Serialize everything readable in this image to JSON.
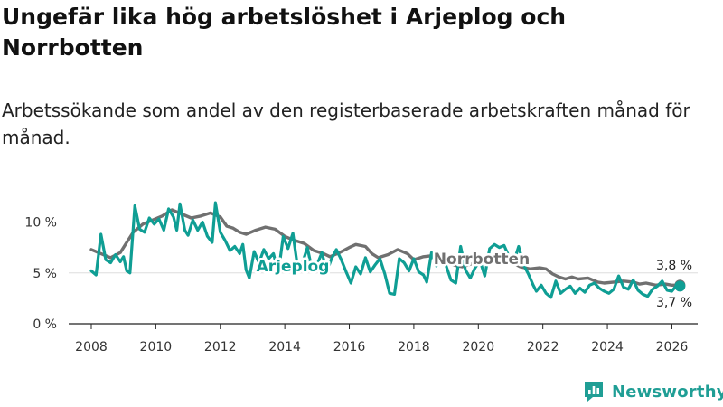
{
  "title": "Ungefär lika hög arbetslöshet i Arjeplog och Norrbotten",
  "subtitle": "Arbetssökande som andel av den registerbaserade arbetskraften månad för månad.",
  "brand": {
    "name": "Newsworthy",
    "icon": "newsworthy-logo-icon"
  },
  "colors": {
    "arjeplog": "#0f9e94",
    "norrbotten": "#707070",
    "grid": "#dedede",
    "axis": "#222222"
  },
  "chart_data": {
    "type": "line",
    "title": "Ungefär lika hög arbetslöshet i Arjeplog och Norrbotten",
    "xlabel": "",
    "ylabel": "",
    "xlim": [
      2007.3,
      2026.8
    ],
    "ylim": [
      0,
      12
    ],
    "x_ticks": [
      2008,
      2010,
      2012,
      2014,
      2016,
      2018,
      2020,
      2022,
      2024,
      2026
    ],
    "x_tick_labels": [
      "2008",
      "2010",
      "2012",
      "2014",
      "2016",
      "2018",
      "2020",
      "2022",
      "2024",
      "2026"
    ],
    "y_ticks": [
      0,
      5,
      10
    ],
    "y_tick_labels": [
      "0 %",
      "5 %",
      "10 %"
    ],
    "grid": true,
    "series": [
      {
        "name": "Norrbotten",
        "label": "Norrbotten",
        "end_label": "3,8 %",
        "end_value": 3.8,
        "points": [
          [
            2008.0,
            7.3
          ],
          [
            2008.3,
            6.9
          ],
          [
            2008.6,
            6.5
          ],
          [
            2008.9,
            7.0
          ],
          [
            2009.1,
            8.0
          ],
          [
            2009.3,
            9.0
          ],
          [
            2009.6,
            9.8
          ],
          [
            2009.9,
            10.2
          ],
          [
            2010.2,
            10.6
          ],
          [
            2010.5,
            11.2
          ],
          [
            2010.8,
            10.8
          ],
          [
            2011.1,
            10.4
          ],
          [
            2011.4,
            10.6
          ],
          [
            2011.7,
            10.9
          ],
          [
            2012.0,
            10.5
          ],
          [
            2012.2,
            9.6
          ],
          [
            2012.4,
            9.4
          ],
          [
            2012.6,
            9.0
          ],
          [
            2012.8,
            8.8
          ],
          [
            2013.1,
            9.2
          ],
          [
            2013.4,
            9.5
          ],
          [
            2013.7,
            9.3
          ],
          [
            2014.0,
            8.6
          ],
          [
            2014.3,
            8.2
          ],
          [
            2014.6,
            7.9
          ],
          [
            2014.9,
            7.2
          ],
          [
            2015.2,
            6.9
          ],
          [
            2015.4,
            6.6
          ],
          [
            2015.7,
            7.0
          ],
          [
            2016.0,
            7.5
          ],
          [
            2016.2,
            7.8
          ],
          [
            2016.5,
            7.6
          ],
          [
            2016.7,
            6.9
          ],
          [
            2016.9,
            6.5
          ],
          [
            2017.2,
            6.8
          ],
          [
            2017.5,
            7.3
          ],
          [
            2017.8,
            6.9
          ],
          [
            2018.0,
            6.3
          ],
          [
            2018.3,
            6.6
          ],
          [
            2018.6,
            6.7
          ],
          [
            2018.9,
            6.4
          ],
          [
            2019.2,
            5.8
          ],
          [
            2019.5,
            5.6
          ],
          [
            2019.8,
            5.9
          ],
          [
            2020.1,
            6.3
          ],
          [
            2020.4,
            6.7
          ],
          [
            2020.7,
            6.5
          ],
          [
            2021.0,
            6.1
          ],
          [
            2021.3,
            5.6
          ],
          [
            2021.6,
            5.4
          ],
          [
            2021.9,
            5.5
          ],
          [
            2022.1,
            5.4
          ],
          [
            2022.3,
            4.9
          ],
          [
            2022.5,
            4.6
          ],
          [
            2022.7,
            4.4
          ],
          [
            2022.9,
            4.6
          ],
          [
            2023.1,
            4.4
          ],
          [
            2023.4,
            4.5
          ],
          [
            2023.7,
            4.1
          ],
          [
            2023.9,
            4.0
          ],
          [
            2024.2,
            4.1
          ],
          [
            2024.5,
            4.2
          ],
          [
            2024.8,
            4.1
          ],
          [
            2025.0,
            3.9
          ],
          [
            2025.2,
            4.0
          ],
          [
            2025.5,
            3.8
          ],
          [
            2025.8,
            3.9
          ],
          [
            2026.0,
            3.8
          ],
          [
            2026.25,
            3.8
          ]
        ]
      },
      {
        "name": "Arjeplog",
        "label": "Arjeplog",
        "end_label": "3,7 %",
        "end_value": 3.7,
        "points": [
          [
            2008.0,
            5.2
          ],
          [
            2008.15,
            4.8
          ],
          [
            2008.3,
            8.8
          ],
          [
            2008.45,
            6.3
          ],
          [
            2008.6,
            6.0
          ],
          [
            2008.75,
            6.8
          ],
          [
            2008.9,
            6.1
          ],
          [
            2009.0,
            6.6
          ],
          [
            2009.1,
            5.2
          ],
          [
            2009.2,
            5.0
          ],
          [
            2009.35,
            11.6
          ],
          [
            2009.5,
            9.3
          ],
          [
            2009.65,
            9.0
          ],
          [
            2009.8,
            10.4
          ],
          [
            2009.95,
            9.8
          ],
          [
            2010.1,
            10.3
          ],
          [
            2010.25,
            9.2
          ],
          [
            2010.4,
            11.3
          ],
          [
            2010.55,
            10.5
          ],
          [
            2010.65,
            9.2
          ],
          [
            2010.75,
            11.8
          ],
          [
            2010.9,
            9.2
          ],
          [
            2011.0,
            8.7
          ],
          [
            2011.15,
            10.2
          ],
          [
            2011.3,
            9.2
          ],
          [
            2011.45,
            10.0
          ],
          [
            2011.6,
            8.6
          ],
          [
            2011.75,
            8.0
          ],
          [
            2011.85,
            11.9
          ],
          [
            2012.0,
            9.0
          ],
          [
            2012.15,
            8.2
          ],
          [
            2012.3,
            7.2
          ],
          [
            2012.45,
            7.6
          ],
          [
            2012.6,
            6.9
          ],
          [
            2012.7,
            7.8
          ],
          [
            2012.8,
            5.3
          ],
          [
            2012.9,
            4.5
          ],
          [
            2013.05,
            7.1
          ],
          [
            2013.2,
            6.0
          ],
          [
            2013.35,
            7.3
          ],
          [
            2013.5,
            6.4
          ],
          [
            2013.65,
            6.9
          ],
          [
            2013.8,
            5.0
          ],
          [
            2013.95,
            8.6
          ],
          [
            2014.1,
            7.4
          ],
          [
            2014.25,
            8.9
          ],
          [
            2014.4,
            5.5
          ],
          [
            2014.55,
            6.0
          ],
          [
            2014.7,
            7.5
          ],
          [
            2014.85,
            5.2
          ],
          [
            2015.0,
            5.8
          ],
          [
            2015.15,
            7.0
          ],
          [
            2015.3,
            5.1
          ],
          [
            2015.45,
            6.4
          ],
          [
            2015.6,
            7.3
          ],
          [
            2015.75,
            6.3
          ],
          [
            2015.9,
            5.1
          ],
          [
            2016.05,
            4.0
          ],
          [
            2016.2,
            5.6
          ],
          [
            2016.35,
            4.9
          ],
          [
            2016.5,
            6.5
          ],
          [
            2016.65,
            5.1
          ],
          [
            2016.8,
            5.8
          ],
          [
            2016.95,
            6.4
          ],
          [
            2017.1,
            4.9
          ],
          [
            2017.25,
            3.0
          ],
          [
            2017.4,
            2.9
          ],
          [
            2017.55,
            6.4
          ],
          [
            2017.7,
            6.0
          ],
          [
            2017.85,
            5.2
          ],
          [
            2018.0,
            6.4
          ],
          [
            2018.15,
            5.1
          ],
          [
            2018.3,
            4.8
          ],
          [
            2018.4,
            4.1
          ],
          [
            2018.55,
            7.0
          ],
          [
            2018.7,
            5.7
          ],
          [
            2018.85,
            6.5
          ],
          [
            2019.0,
            5.7
          ],
          [
            2019.15,
            4.3
          ],
          [
            2019.3,
            4.0
          ],
          [
            2019.45,
            7.6
          ],
          [
            2019.6,
            5.3
          ],
          [
            2019.75,
            4.5
          ],
          [
            2019.9,
            5.5
          ],
          [
            2020.05,
            6.2
          ],
          [
            2020.2,
            4.7
          ],
          [
            2020.35,
            7.4
          ],
          [
            2020.5,
            7.8
          ],
          [
            2020.65,
            7.5
          ],
          [
            2020.8,
            7.7
          ],
          [
            2020.95,
            6.6
          ],
          [
            2021.1,
            6.1
          ],
          [
            2021.25,
            7.6
          ],
          [
            2021.4,
            5.8
          ],
          [
            2021.55,
            4.9
          ],
          [
            2021.7,
            3.8
          ],
          [
            2021.8,
            3.2
          ],
          [
            2021.95,
            3.8
          ],
          [
            2022.1,
            3.0
          ],
          [
            2022.25,
            2.6
          ],
          [
            2022.4,
            4.2
          ],
          [
            2022.55,
            3.0
          ],
          [
            2022.7,
            3.4
          ],
          [
            2022.85,
            3.7
          ],
          [
            2023.0,
            3.0
          ],
          [
            2023.15,
            3.5
          ],
          [
            2023.3,
            3.1
          ],
          [
            2023.45,
            3.8
          ],
          [
            2023.6,
            4.0
          ],
          [
            2023.75,
            3.5
          ],
          [
            2023.9,
            3.2
          ],
          [
            2024.05,
            3.0
          ],
          [
            2024.2,
            3.4
          ],
          [
            2024.35,
            4.7
          ],
          [
            2024.5,
            3.6
          ],
          [
            2024.65,
            3.4
          ],
          [
            2024.8,
            4.3
          ],
          [
            2024.95,
            3.3
          ],
          [
            2025.1,
            2.9
          ],
          [
            2025.25,
            2.7
          ],
          [
            2025.4,
            3.4
          ],
          [
            2025.55,
            3.7
          ],
          [
            2025.7,
            4.2
          ],
          [
            2025.85,
            3.3
          ],
          [
            2026.0,
            3.2
          ],
          [
            2026.1,
            3.6
          ],
          [
            2026.25,
            3.7
          ]
        ]
      }
    ]
  }
}
